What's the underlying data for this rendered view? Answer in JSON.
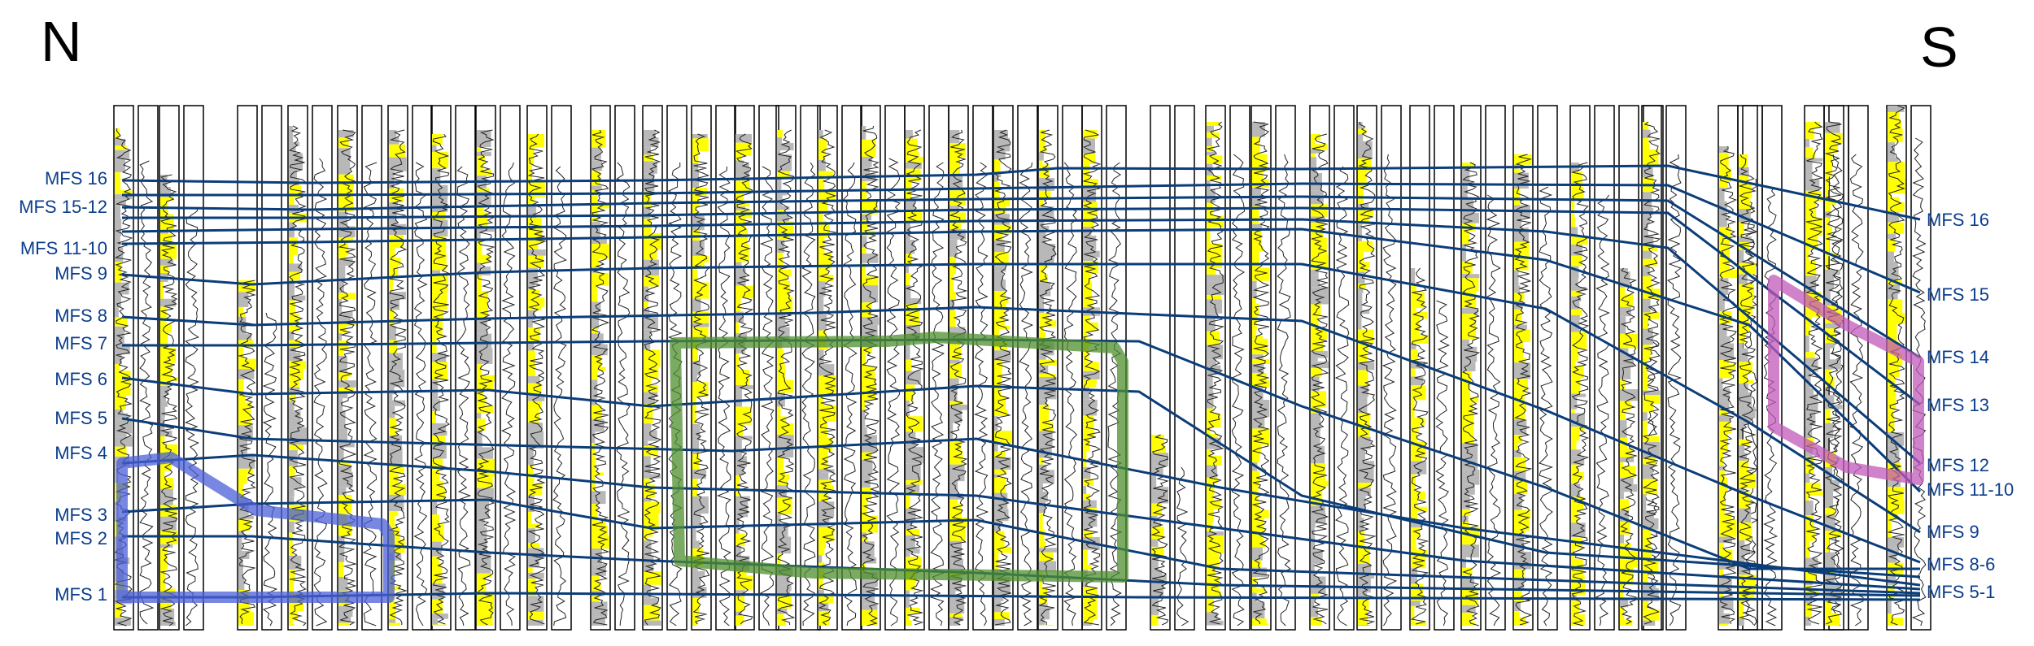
{
  "compass": {
    "north": "N",
    "south": "S"
  },
  "left_labels": [
    "MFS 16",
    "MFS 15-12",
    "MFS 11-10",
    "MFS 9",
    "MFS 8",
    "MFS 7",
    "MFS 6",
    "MFS 5",
    "MFS 4",
    "MFS 3",
    "MFS 2",
    "MFS 1"
  ],
  "right_labels": [
    "MFS 16",
    "MFS 15",
    "MFS 14",
    "MFS 13",
    "MFS 12",
    "MFS 11-10",
    "MFS 9",
    "MFS 8-6",
    "MFS 5-1"
  ],
  "colors": {
    "surface": "#0b3d7a",
    "label": "#0b3d8c",
    "sand_fill": "#ffff00",
    "shale_fill": "#b8b8b8",
    "zone_blue": "#4a5fd8",
    "zone_green": "#4f8f2f",
    "zone_pink": "#c05ab8"
  },
  "zones": [
    {
      "name": "zone-blue",
      "color": "#4a5fd8"
    },
    {
      "name": "zone-green",
      "color": "#4f8f2f"
    },
    {
      "name": "zone-pink",
      "color": "#c05ab8"
    }
  ]
}
